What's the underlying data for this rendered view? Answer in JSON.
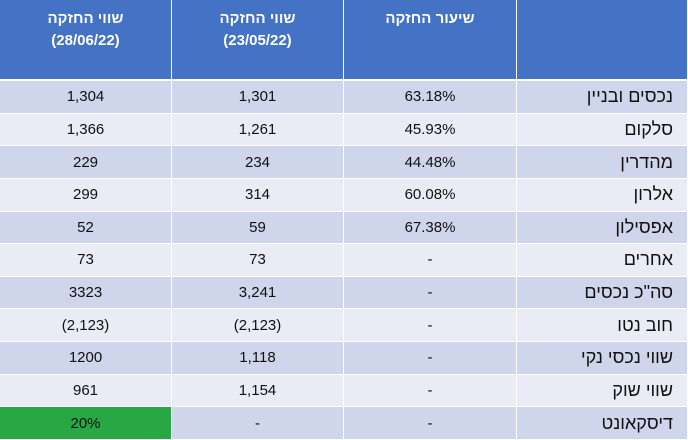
{
  "headers": {
    "col1_title": "שווי החזקה",
    "col1_date": "(28/06/22)",
    "col2_title": "שווי החזקה",
    "col2_date": "(23/05/22)",
    "col3_title": "שיעור החזקה",
    "col4_title": ""
  },
  "rows": [
    {
      "name": "נכסים ובניין",
      "rate": "63.18%",
      "val_may": "1,301",
      "val_jun": "1,304"
    },
    {
      "name": "סלקום",
      "rate": "45.93%",
      "val_may": "1,261",
      "val_jun": "1,366"
    },
    {
      "name": "מהדרין",
      "rate": "44.48%",
      "val_may": "234",
      "val_jun": "229"
    },
    {
      "name": "אלרון",
      "rate": "60.08%",
      "val_may": "314",
      "val_jun": "299"
    },
    {
      "name": "אפסילון",
      "rate": "67.38%",
      "val_may": "59",
      "val_jun": "52"
    },
    {
      "name": "אחרים",
      "rate": "-",
      "val_may": "73",
      "val_jun": "73"
    },
    {
      "name": "סה\"כ נכסים",
      "rate": "-",
      "val_may": "3,241",
      "val_jun": "3323"
    },
    {
      "name": "חוב נטו",
      "rate": "-",
      "val_may": "(2,123)",
      "val_jun": "(2,123)"
    },
    {
      "name": "שווי נכסי נקי",
      "rate": "-",
      "val_may": "1,118",
      "val_jun": "1200"
    },
    {
      "name": "שווי שוק",
      "rate": "-",
      "val_may": "1,154",
      "val_jun": "961"
    },
    {
      "name": "דיסקאונט",
      "rate": "-",
      "val_may": "-",
      "val_jun": "20%"
    }
  ],
  "colors": {
    "header": "#4472c4",
    "row_dark": "#cfd5ea",
    "row_light": "#e9ebf5",
    "highlight": "#28a745"
  }
}
